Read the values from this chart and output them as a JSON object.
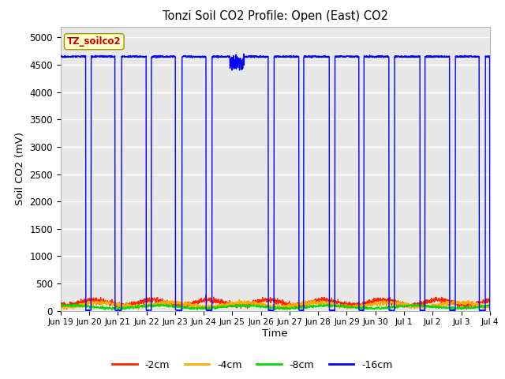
{
  "title": "Tonzi Soil CO2 Profile: Open (East) CO2",
  "ylabel": "Soil CO2 (mV)",
  "xlabel": "Time",
  "ylim": [
    0,
    5200
  ],
  "yticks": [
    0,
    500,
    1000,
    1500,
    2000,
    2500,
    3000,
    3500,
    4000,
    4500,
    5000
  ],
  "plot_bg_color": "#e8e8e8",
  "fig_bg_color": "#ffffff",
  "colors": {
    "2cm": "#ff2200",
    "4cm": "#ffaa00",
    "8cm": "#00dd00",
    "16cm": "#0000ff"
  },
  "label_box_color": "#ffffcc",
  "label_box_text": "TZ_soilco2",
  "legend_labels": [
    "-2cm",
    "-4cm",
    "-8cm",
    "-16cm"
  ],
  "spike_high": 4650,
  "x_tick_labels": [
    "Jun 19",
    "Jun 20",
    "Jun 21",
    "Jun 22",
    "Jun 23",
    "Jun 24",
    "Jun 25",
    "Jun 26",
    "Jun 27",
    "Jun 28",
    "Jun 29",
    "Jun 30",
    "Jul 1",
    "Jul 2",
    "Jul 3",
    "Jul 4"
  ],
  "total_hours": 360,
  "spike_on_hours": 20,
  "spike_off_hours": 4
}
